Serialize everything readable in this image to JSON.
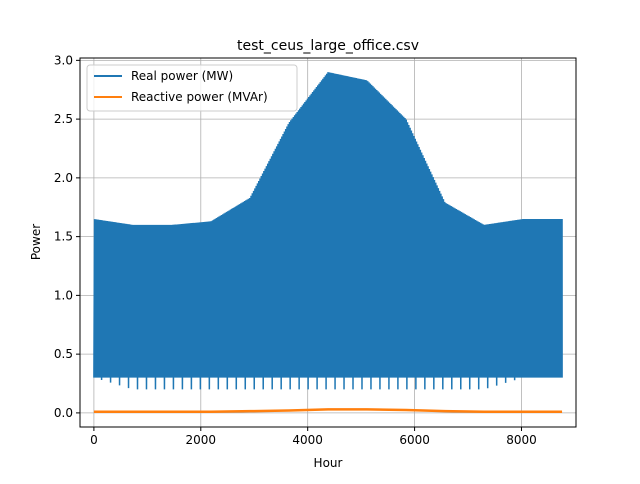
{
  "chart_data": {
    "type": "line",
    "title": "test_ceus_large_office.csv",
    "xlabel": "Hour",
    "ylabel": "Power",
    "xlim": [
      -260,
      9020
    ],
    "ylim": [
      -0.12,
      3.02
    ],
    "xticks": [
      0,
      2000,
      4000,
      6000,
      8000
    ],
    "xtick_labels": [
      "0",
      "2000",
      "4000",
      "6000",
      "8000"
    ],
    "yticks": [
      0.0,
      0.5,
      1.0,
      1.5,
      2.0,
      2.5,
      3.0
    ],
    "ytick_labels": [
      "0.0",
      "0.5",
      "1.0",
      "1.5",
      "2.0",
      "2.5",
      "3.0"
    ],
    "grid": true,
    "legend_position": "top-left",
    "series": [
      {
        "name": "Real power (MW)",
        "color": "#1f77b4",
        "x": [
          0,
          730,
          1460,
          2190,
          2920,
          3650,
          4380,
          5110,
          5840,
          6570,
          7300,
          8030,
          8759
        ],
        "daily_max": [
          1.65,
          1.6,
          1.6,
          1.63,
          1.83,
          2.47,
          2.9,
          2.83,
          2.5,
          1.79,
          1.6,
          1.65,
          1.65
        ],
        "daily_min": [
          0.3,
          0.3,
          0.3,
          0.3,
          0.3,
          0.3,
          0.3,
          0.3,
          0.3,
          0.3,
          0.3,
          0.3,
          0.3
        ],
        "weekly_min": [
          0.3,
          0.2,
          0.2,
          0.2,
          0.2,
          0.2,
          0.2,
          0.2,
          0.2,
          0.2,
          0.2,
          0.3,
          0.3
        ]
      },
      {
        "name": "Reactive power (MVAr)",
        "color": "#ff7f0e",
        "x": [
          0,
          730,
          1460,
          2190,
          2920,
          3650,
          4380,
          5110,
          5840,
          6570,
          7300,
          8030,
          8759
        ],
        "values": [
          0.01,
          0.01,
          0.01,
          0.01,
          0.015,
          0.02,
          0.03,
          0.03,
          0.025,
          0.015,
          0.01,
          0.01,
          0.01
        ]
      }
    ]
  }
}
